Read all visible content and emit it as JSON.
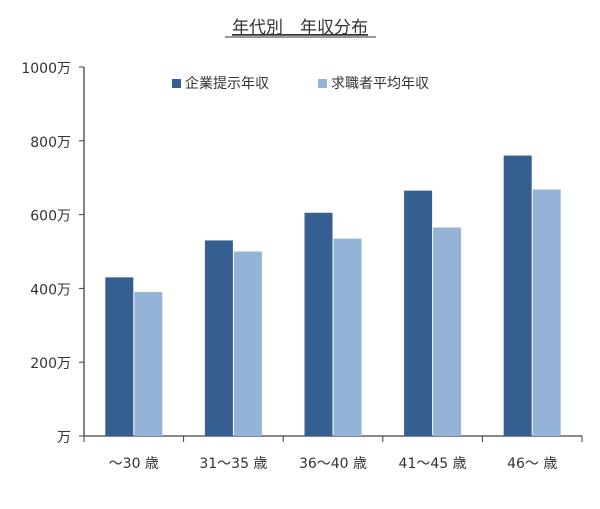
{
  "chart_data": {
    "type": "bar",
    "title": "年代別　年収分布",
    "xlabel": "",
    "ylabel": "",
    "categories": [
      "～30 歳",
      "31～35 歳",
      "36～40 歳",
      "41～45 歳",
      "46～ 歳"
    ],
    "series": [
      {
        "name": "企業提示年収",
        "color": "#365f91",
        "values": [
          430,
          530,
          605,
          665,
          760
        ]
      },
      {
        "name": "求職者平均年収",
        "color": "#95b3d7",
        "values": [
          390,
          500,
          535,
          565,
          668
        ]
      }
    ],
    "ylim": [
      0,
      1000
    ],
    "yticks": [
      0,
      200,
      400,
      600,
      800,
      1000
    ],
    "ytick_labels": [
      "万",
      "200万",
      "400万",
      "600万",
      "800万",
      "1000万"
    ],
    "grid": false,
    "legend_position": "top-center"
  }
}
